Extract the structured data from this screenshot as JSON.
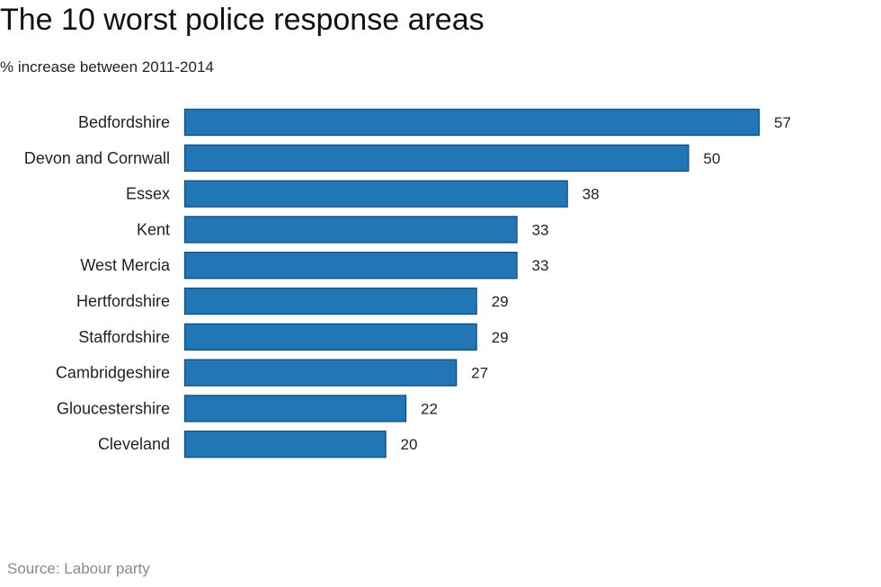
{
  "header": {
    "title": "The 10 worst police response areas",
    "subtitle": "% increase between 2011-2014"
  },
  "footer": {
    "source": "Source: Labour party"
  },
  "colors": {
    "bar_fill": "#2177b6",
    "bar_stroke": "#0d4f88",
    "label_text": "#222222",
    "source_text": "#8a8a8a"
  },
  "chart_data": {
    "type": "bar",
    "orientation": "horizontal",
    "title": "The 10 worst police response areas",
    "subtitle": "% increase between 2011-2014",
    "categories": [
      "Bedfordshire",
      "Devon and Cornwall",
      "Essex",
      "Kent",
      "West Mercia",
      "Hertfordshire",
      "Staffordshire",
      "Cambridgeshire",
      "Gloucestershire",
      "Cleveland"
    ],
    "values": [
      57,
      50,
      38,
      33,
      33,
      29,
      29,
      27,
      22,
      20
    ],
    "data_labels": [
      "57",
      "50",
      "38",
      "33",
      "33",
      "29",
      "29",
      "27",
      "22",
      "20"
    ],
    "xlim": [
      0,
      57
    ],
    "grid": false,
    "legend": "none",
    "xlabel": "",
    "ylabel": ""
  }
}
